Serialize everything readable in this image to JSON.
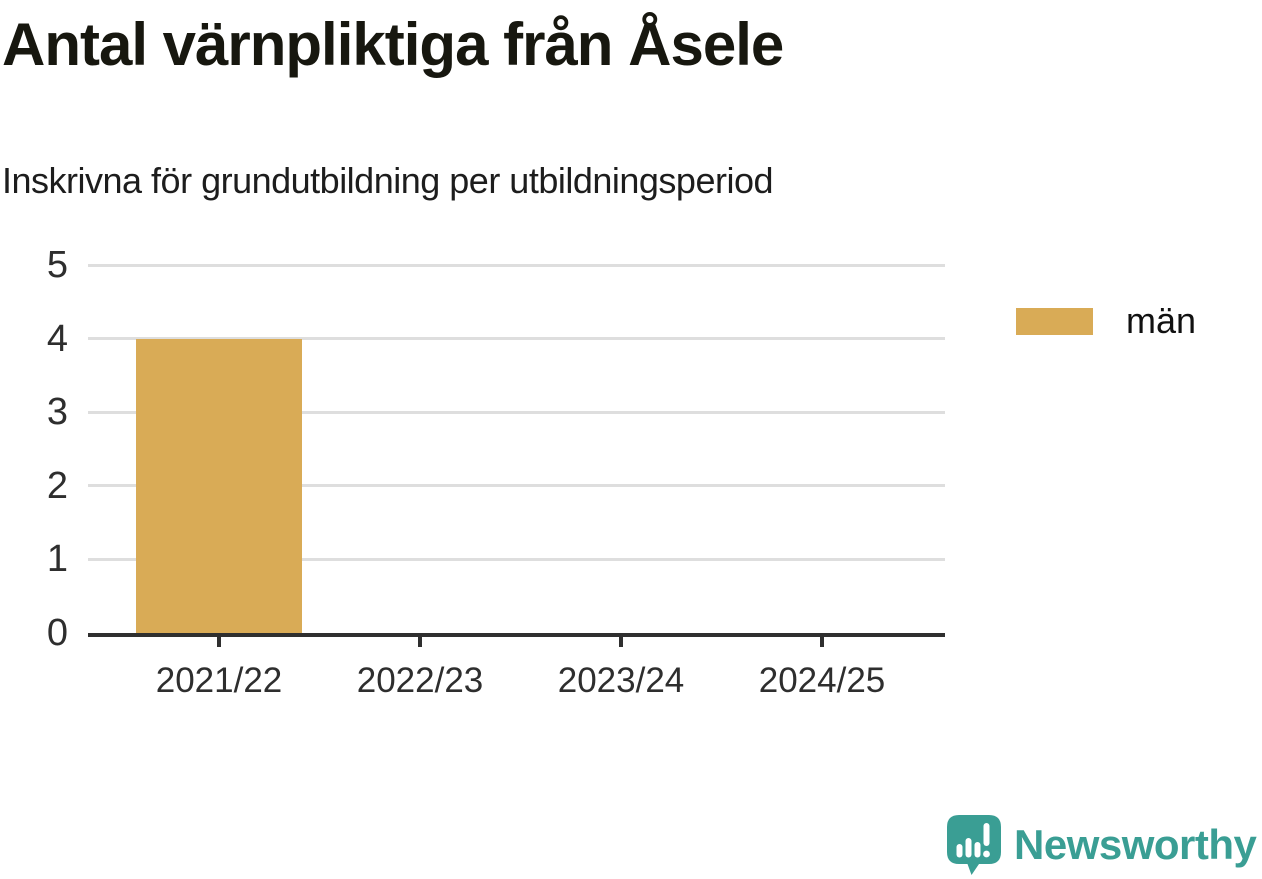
{
  "header": {
    "title": "Antal värnpliktiga från Åsele",
    "subtitle": "Inskrivna för grundutbildning per utbildningsperiod"
  },
  "legend": {
    "items": [
      {
        "label": "män",
        "color": "#d9ab56"
      }
    ]
  },
  "brand": {
    "name": "Newsworthy",
    "icon": "newsworthy-speech-bubble-bar-chart-icon",
    "color": "#3a9e94"
  },
  "colors": {
    "bar": "#d9ab56",
    "axis": "#2f2f2f",
    "gridline": "#dedede",
    "title_text": "#17170f",
    "tick_text": "#2e2e2e",
    "brand_teal": "#3a9e94"
  },
  "chart_data": {
    "type": "bar",
    "title": "Antal värnpliktiga från Åsele",
    "subtitle": "Inskrivna för grundutbildning per utbildningsperiod",
    "categories": [
      "2021/22",
      "2022/23",
      "2023/24",
      "2024/25"
    ],
    "series": [
      {
        "name": "män",
        "color": "#d9ab56",
        "values": [
          4,
          0,
          0,
          0
        ]
      }
    ],
    "xlabel": "",
    "ylabel": "",
    "ylim": [
      0,
      5
    ],
    "y_ticks": [
      0,
      1,
      2,
      3,
      4,
      5
    ],
    "grid": "horizontal",
    "legend_position": "right"
  }
}
